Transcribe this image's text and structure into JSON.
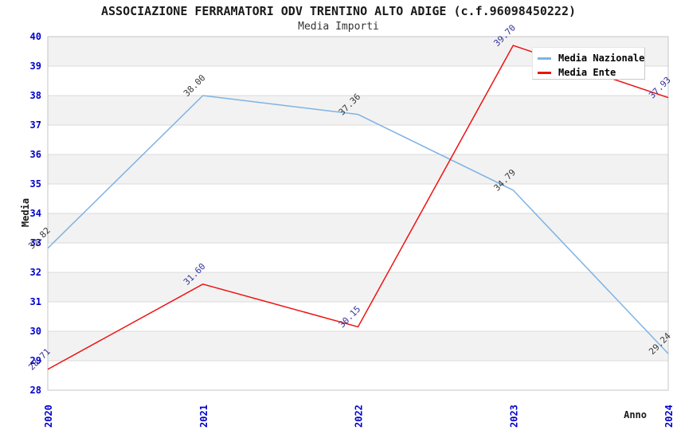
{
  "chart_data": {
    "type": "line",
    "title": "ASSOCIAZIONE FERRAMATORI ODV TRENTINO ALTO ADIGE (c.f.96098450222)",
    "subtitle": "Media Importi",
    "xlabel": "Anno",
    "ylabel": "Media",
    "categories": [
      "2020",
      "2021",
      "2022",
      "2023",
      "2024"
    ],
    "ylim": [
      28,
      40
    ],
    "ytick_step": 1,
    "grid": "horizontal gridlines with alternating shaded bands",
    "legend_position": "top-right",
    "series": [
      {
        "name": "Media Nazionale",
        "color": "#7FB3E3",
        "label_color": "#3A3A3A",
        "values": [
          32.82,
          38.0,
          37.36,
          34.79,
          29.24
        ]
      },
      {
        "name": "Media Ente",
        "color": "#EE1111",
        "label_color": "#333399",
        "values": [
          28.71,
          31.6,
          30.15,
          39.7,
          37.93
        ]
      }
    ],
    "colors": {
      "tick_label": "#0000CC",
      "band": "#F2F2F2",
      "grid": "#DBDBDB",
      "plot_border": "#C4C4C4",
      "title": "#1A1A1A",
      "background": "#FFFFFF"
    }
  }
}
